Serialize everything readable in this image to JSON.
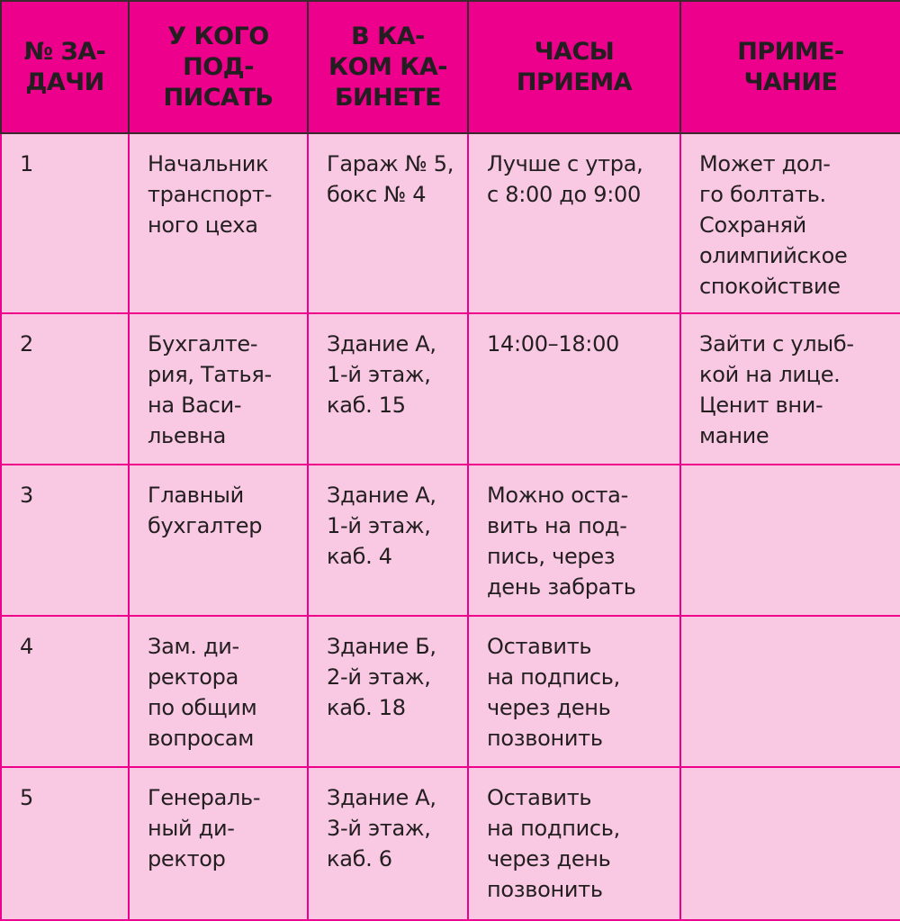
{
  "headers": [
    "№ ЗА-\nДАЧИ",
    "У КОГО\nПОД-\nПИСАТЬ",
    "В КА-\nКОМ КА-\nБИНЕТЕ",
    "ЧАСЫ\nПРИЕМА",
    "ПРИМЕ-\nЧАНИЕ"
  ],
  "rows": [
    [
      "1",
      "Начальник\nтранспорт-\nного цеха",
      "Гараж № 5,\nбокс № 4",
      "Лучше с утра,\nс 8:00 до 9:00",
      "Может дол-\nго болтать.\nСохраняй\nолимпийское\nспокойствие"
    ],
    [
      "2",
      "Бухгалте-\nрия, Татья-\nна Васи-\nльевна",
      "Здание А,\n1-й этаж,\nкаб. 15",
      "14:00–18:00",
      "Зайти с улыб-\nкой на лице.\nЦенит вни-\nмание"
    ],
    [
      "3",
      "Главный\nбухгалтер",
      "Здание А,\n1-й этаж,\nкаб. 4",
      "Можно оста-\nвить на под-\nпись, через\nдень забрать",
      ""
    ],
    [
      "4",
      "Зам. ди-\nректора\nпо общим\nвопросам",
      "Здание Б,\n2-й этаж,\nкаб. 18",
      "Оставить\nна подпись,\nчерез день\nпозвонить",
      ""
    ],
    [
      "5",
      "Генераль-\nный ди-\nректор",
      "Здание А,\n3-й этаж,\nкаб. 6",
      "Оставить\nна подпись,\nчерез день\nпозвонить",
      ""
    ]
  ],
  "colors": {
    "header_bg": "#ec008c",
    "body_bg": "#f9c8e3",
    "text": "#231f20"
  }
}
